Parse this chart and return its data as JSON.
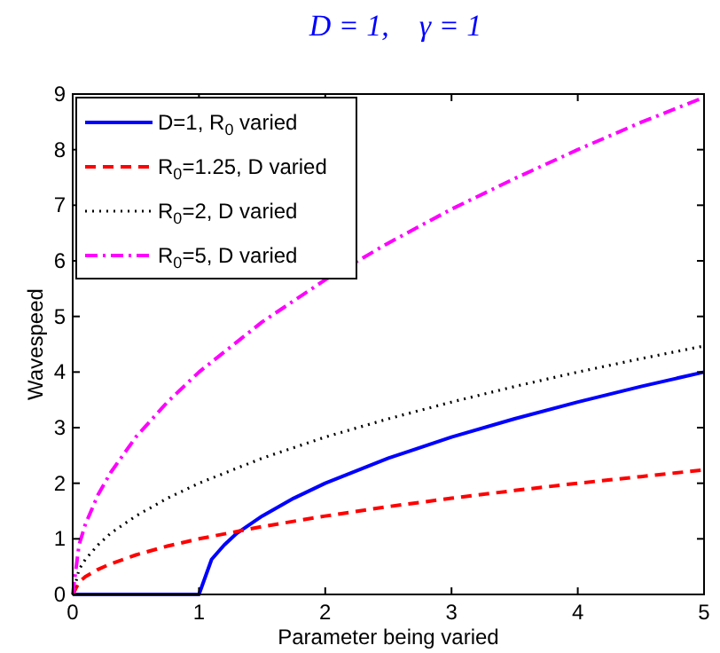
{
  "chart_data": {
    "type": "line",
    "title": "D = 1,    γ = 1",
    "xlabel": "Parameter being varied",
    "ylabel": "Wavespeed",
    "xlim": [
      0,
      5
    ],
    "xticks": [
      0,
      1,
      2,
      3,
      4,
      5
    ],
    "ylim": [
      0,
      9
    ],
    "yticks": [
      0,
      1,
      2,
      3,
      4,
      5,
      6,
      7,
      8,
      9
    ],
    "grid": false,
    "legend": "top left",
    "series": [
      {
        "name": "D=1, R$_{0}$ varied",
        "color": "#0000ff",
        "line_style": "solid",
        "x": [
          0,
          1,
          1.1,
          1.2,
          1.3,
          1.5,
          1.75,
          2,
          2.5,
          3,
          3.5,
          4,
          4.5,
          5
        ],
        "values": [
          0,
          0,
          0.63,
          0.89,
          1.1,
          1.41,
          1.73,
          2,
          2.45,
          2.83,
          3.16,
          3.46,
          3.74,
          4
        ]
      },
      {
        "name": "R$_{0}$=1.25, D varied",
        "color": "#ff0000",
        "line_style": "dashed",
        "x": [
          0,
          0.05,
          0.1,
          0.2,
          0.3,
          0.5,
          0.75,
          1,
          1.5,
          2,
          2.5,
          3,
          3.5,
          4,
          4.5,
          5
        ],
        "values": [
          0,
          0.22,
          0.32,
          0.45,
          0.55,
          0.71,
          0.87,
          1,
          1.22,
          1.41,
          1.58,
          1.73,
          1.87,
          2,
          2.12,
          2.24
        ]
      },
      {
        "name": "R$_{0}$=2, D varied",
        "color": "#000000",
        "line_style": "dotted",
        "x": [
          0,
          0.05,
          0.1,
          0.2,
          0.3,
          0.5,
          0.75,
          1,
          1.5,
          2,
          2.5,
          3,
          3.5,
          4,
          4.5,
          5
        ],
        "values": [
          0,
          0.45,
          0.63,
          0.89,
          1.1,
          1.41,
          1.73,
          2,
          2.45,
          2.83,
          3.16,
          3.46,
          3.74,
          4,
          4.24,
          4.47
        ]
      },
      {
        "name": "R$_{0}$=5, D varied",
        "color": "#ff00ff",
        "line_style": "dashdot",
        "x": [
          0,
          0.05,
          0.1,
          0.2,
          0.3,
          0.5,
          0.75,
          1,
          1.5,
          2,
          2.5,
          3,
          3.5,
          4,
          4.5,
          5
        ],
        "values": [
          0,
          0.89,
          1.26,
          1.79,
          2.19,
          2.83,
          3.46,
          4,
          4.9,
          5.66,
          6.32,
          6.93,
          7.48,
          8,
          8.49,
          8.94
        ]
      }
    ]
  }
}
